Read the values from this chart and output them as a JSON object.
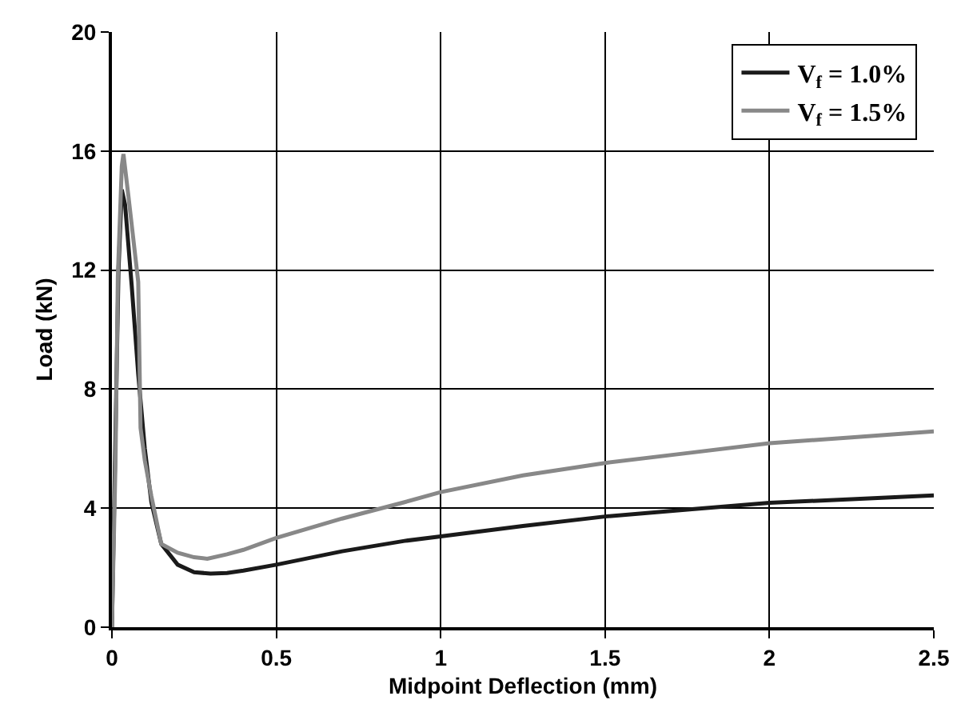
{
  "chart_data": {
    "type": "line",
    "xlabel": "Midpoint Deflection (mm)",
    "ylabel": "Load (kN)",
    "xlim": [
      0,
      2.5
    ],
    "xticks": [
      0,
      0.5,
      1,
      1.5,
      2,
      2.5
    ],
    "ylim": [
      0,
      20
    ],
    "yticks": [
      0,
      4,
      8,
      12,
      16,
      20
    ],
    "grid": true,
    "legend": "top right",
    "marker": "none",
    "series": [
      {
        "name": "V$_{f}$ = 1.0%",
        "color": "#1a1a1a",
        "line_style": "solid",
        "x": [
          0,
          0.01,
          0.02,
          0.03,
          0.04,
          0.06,
          0.08,
          0.1,
          0.12,
          0.15,
          0.2,
          0.25,
          0.3,
          0.35,
          0.4,
          0.5,
          0.7,
          0.89,
          1,
          1.25,
          1.5,
          1.75,
          2,
          2.25,
          2.5
        ],
        "values": [
          0,
          6,
          12,
          14.7,
          14.2,
          11.5,
          8.5,
          6,
          4.2,
          2.8,
          2.1,
          1.85,
          1.8,
          1.82,
          1.9,
          2.1,
          2.55,
          2.9,
          3.05,
          3.4,
          3.72,
          3.95,
          4.18,
          4.3,
          4.43
        ]
      },
      {
        "name": "V$_{f}$ = 1.5%",
        "color": "#888888",
        "line_style": "solid",
        "x": [
          0,
          0.011,
          0.018,
          0.03,
          0.035,
          0.05,
          0.08,
          0.087,
          0.1,
          0.12,
          0.15,
          0.2,
          0.25,
          0.29,
          0.35,
          0.4,
          0.5,
          0.7,
          0.89,
          1,
          1.25,
          1.5,
          1.75,
          2,
          2.25,
          2.5
        ],
        "values": [
          0,
          5.6,
          11.8,
          15.5,
          15.9,
          14.5,
          11.6,
          6.7,
          5.6,
          4.4,
          2.8,
          2.5,
          2.35,
          2.3,
          2.45,
          2.6,
          3.0,
          3.65,
          4.2,
          4.54,
          5.1,
          5.52,
          5.85,
          6.18,
          6.38,
          6.58
        ]
      }
    ]
  }
}
